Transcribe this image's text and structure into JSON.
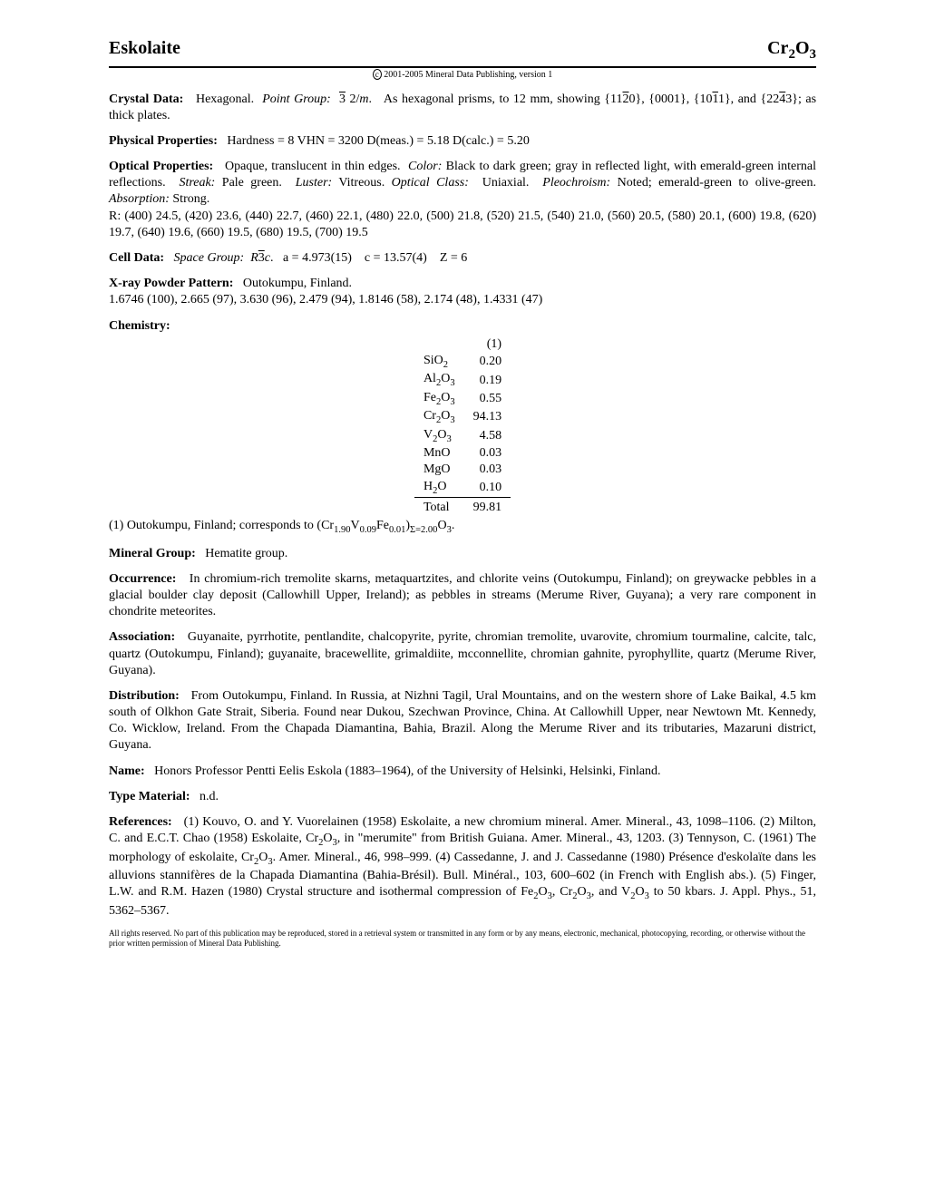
{
  "header": {
    "name": "Eskolaite",
    "formula_html": "Cr<sub>2</sub>O<sub>3</sub>"
  },
  "copyright": "2001-2005 Mineral Data Publishing, version 1",
  "crystal_data": {
    "label": "Crystal Data:",
    "system": "Hexagonal.",
    "point_group_label": "Point Group:",
    "point_group_html": "<span class=\"overline\">3</span> 2/<i>m</i>.",
    "desc_html": "As hexagonal prisms, to 12 mm, showing {11<span class=\"overline\">2</span>0}, {0001}, {10<span class=\"overline\">1</span>1}, and {22<span class=\"overline\">4</span>3}; as thick plates."
  },
  "physical": {
    "label": "Physical Properties:",
    "text": "Hardness = 8   VHN = 3200   D(meas.) = 5.18   D(calc.) = 5.20"
  },
  "optical": {
    "label": "Optical Properties:",
    "body_html": "Opaque, translucent in thin edges. &nbsp;<i>Color:</i> Black to dark green; gray in reflected light, with emerald-green internal reflections. &nbsp;<i>Streak:</i> Pale green. &nbsp;<i>Luster:</i> Vitreous. <i>Optical Class:</i> &nbsp;Uniaxial. &nbsp;<i>Pleochroism:</i> Noted; emerald-green to olive-green. <i>Absorption:</i> Strong.",
    "r_values": "R: (400) 24.5, (420) 23.6, (440) 22.7, (460) 22.1, (480) 22.0, (500) 21.8, (520) 21.5, (540) 21.0, (560) 20.5, (580) 20.1, (600) 19.8, (620) 19.7, (640) 19.6, (660) 19.5, (680) 19.5, (700) 19.5"
  },
  "cell_data": {
    "label": "Cell Data:",
    "html": "<i>Space Group:</i> &nbsp;<i>R</i><span class=\"overline\">3</span><i>c</i>. &nbsp;&nbsp;a = 4.973(15) &nbsp;&nbsp;&nbsp;c = 13.57(4) &nbsp;&nbsp;&nbsp;Z = 6"
  },
  "xray": {
    "label": "X-ray Powder Pattern:",
    "locality": "Outokumpu, Finland.",
    "values": "1.6746 (100), 2.665 (97), 3.630 (96), 2.479 (94), 1.8146 (58), 2.174 (48), 1.4331 (47)"
  },
  "chemistry": {
    "label": "Chemistry:",
    "col_header": "(1)",
    "rows": [
      {
        "compound_html": "SiO<sub>2</sub>",
        "value": "0.20"
      },
      {
        "compound_html": "Al<sub>2</sub>O<sub>3</sub>",
        "value": "0.19"
      },
      {
        "compound_html": "Fe<sub>2</sub>O<sub>3</sub>",
        "value": "0.55"
      },
      {
        "compound_html": "Cr<sub>2</sub>O<sub>3</sub>",
        "value": "94.13"
      },
      {
        "compound_html": "V<sub>2</sub>O<sub>3</sub>",
        "value": "4.58"
      },
      {
        "compound_html": "MnO",
        "value": "0.03"
      },
      {
        "compound_html": "MgO",
        "value": "0.03"
      },
      {
        "compound_html": "H<sub>2</sub>O",
        "value": "0.10"
      }
    ],
    "total_label": "Total",
    "total_value": "99.81",
    "note_html": "(1) Outokumpu, Finland; corresponds to (Cr<sub>1.90</sub>V<sub>0.09</sub>Fe<sub>0.01</sub>)<sub>Σ=2.00</sub>O<sub>3</sub>."
  },
  "mineral_group": {
    "label": "Mineral Group:",
    "text": "Hematite group."
  },
  "occurrence": {
    "label": "Occurrence:",
    "text": "In chromium-rich tremolite skarns, metaquartzites, and chlorite veins (Outokumpu, Finland); on greywacke pebbles in a glacial boulder clay deposit (Callowhill Upper, Ireland); as pebbles in streams (Merume River, Guyana); a very rare component in chondrite meteorites."
  },
  "association": {
    "label": "Association:",
    "text": "Guyanaite, pyrrhotite, pentlandite, chalcopyrite, pyrite, chromian tremolite, uvarovite, chromium tourmaline, calcite, talc, quartz (Outokumpu, Finland); guyanaite, bracewellite, grimaldiite, mcconnellite, chromian gahnite, pyrophyllite, quartz (Merume River, Guyana)."
  },
  "distribution": {
    "label": "Distribution:",
    "text": "From Outokumpu, Finland. In Russia, at Nizhni Tagil, Ural Mountains, and on the western shore of Lake Baikal, 4.5 km south of Olkhon Gate Strait, Siberia. Found near Dukou, Szechwan Province, China. At Callowhill Upper, near Newtown Mt. Kennedy, Co. Wicklow, Ireland. From the Chapada Diamantina, Bahia, Brazil. Along the Merume River and its tributaries, Mazaruni district, Guyana."
  },
  "name_section": {
    "label": "Name:",
    "text": "Honors Professor Pentti Eelis Eskola (1883–1964), of the University of Helsinki, Helsinki, Finland."
  },
  "type_material": {
    "label": "Type Material:",
    "text": "n.d."
  },
  "references": {
    "label": "References:",
    "html": "(1) Kouvo, O. and Y. Vuorelainen (1958) Eskolaite, a new chromium mineral. Amer. Mineral., 43, 1098–1106. (2) Milton, C. and E.C.T. Chao (1958) Eskolaite, Cr<sub>2</sub>O<sub>3</sub>, in \"merumite\" from British Guiana. Amer. Mineral., 43, 1203. (3) Tennyson, C. (1961) The morphology of eskolaite, Cr<sub>2</sub>O<sub>3</sub>. Amer. Mineral., 46, 998–999. (4) Cassedanne, J. and J. Cassedanne (1980) Présence d'eskolaïte dans les alluvions stannifères de la Chapada Diamantina (Bahia-Brésil). Bull. Minéral., 103, 600–602 (in French with English abs.). (5) Finger, L.W. and R.M. Hazen (1980) Crystal structure and isothermal compression of Fe<sub>2</sub>O<sub>3</sub>, Cr<sub>2</sub>O<sub>3</sub>, and V<sub>2</sub>O<sub>3</sub> to 50 kbars. J. Appl. Phys., 51, 5362–5367."
  },
  "footer": "All rights reserved. No part of this publication may be reproduced, stored in a retrieval system or transmitted in any form or by any means, electronic, mechanical, photocopying, recording, or otherwise without the prior written permission of Mineral Data Publishing."
}
